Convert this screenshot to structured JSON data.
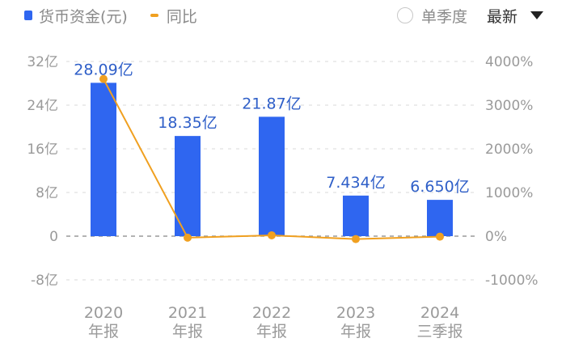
{
  "legend": {
    "bar_label": "货币资金(元)",
    "line_label": "同比"
  },
  "controls": {
    "single_quarter_label": "单季度",
    "single_quarter_checked": false,
    "sort_label": "最新"
  },
  "colors": {
    "bar": "#2f66f0",
    "line": "#f0a020",
    "data_label": "#2f5fc8",
    "axis_text": "#9a9a9a",
    "grid": "#d8d8d8"
  },
  "chart_data": {
    "type": "bar+line",
    "title": "",
    "categories": [
      "2020\n年报",
      "2021\n年报",
      "2022\n年报",
      "2023\n年报",
      "2024\n三季报"
    ],
    "category_lines": [
      [
        "2020",
        "年报"
      ],
      [
        "2021",
        "年报"
      ],
      [
        "2022",
        "年报"
      ],
      [
        "2023",
        "年报"
      ],
      [
        "2024",
        "三季报"
      ]
    ],
    "series": [
      {
        "name": "货币资金(元)",
        "type": "bar",
        "axis": "left",
        "unit": "亿",
        "values": [
          28.09,
          18.35,
          21.87,
          7.434,
          6.65
        ],
        "labels": [
          "28.09亿",
          "18.35亿",
          "21.87亿",
          "7.434亿",
          "6.650亿"
        ]
      },
      {
        "name": "同比",
        "type": "line",
        "axis": "right",
        "unit": "%",
        "values": [
          3600,
          -34.7,
          19.2,
          -66.0,
          -10.5
        ]
      }
    ],
    "y_left": {
      "ticks": [
        -8,
        0,
        8,
        16,
        24,
        32
      ],
      "tick_labels": [
        "-8亿",
        "0",
        "8亿",
        "16亿",
        "24亿",
        "32亿"
      ],
      "range": [
        -8,
        32
      ]
    },
    "y_right": {
      "ticks": [
        -1000,
        0,
        1000,
        2000,
        3000,
        4000
      ],
      "tick_labels": [
        "-1000%",
        "0%",
        "1000%",
        "2000%",
        "3000%",
        "4000%"
      ],
      "range": [
        -1000,
        4000
      ]
    },
    "grid": true,
    "legend_position": "top-left"
  }
}
